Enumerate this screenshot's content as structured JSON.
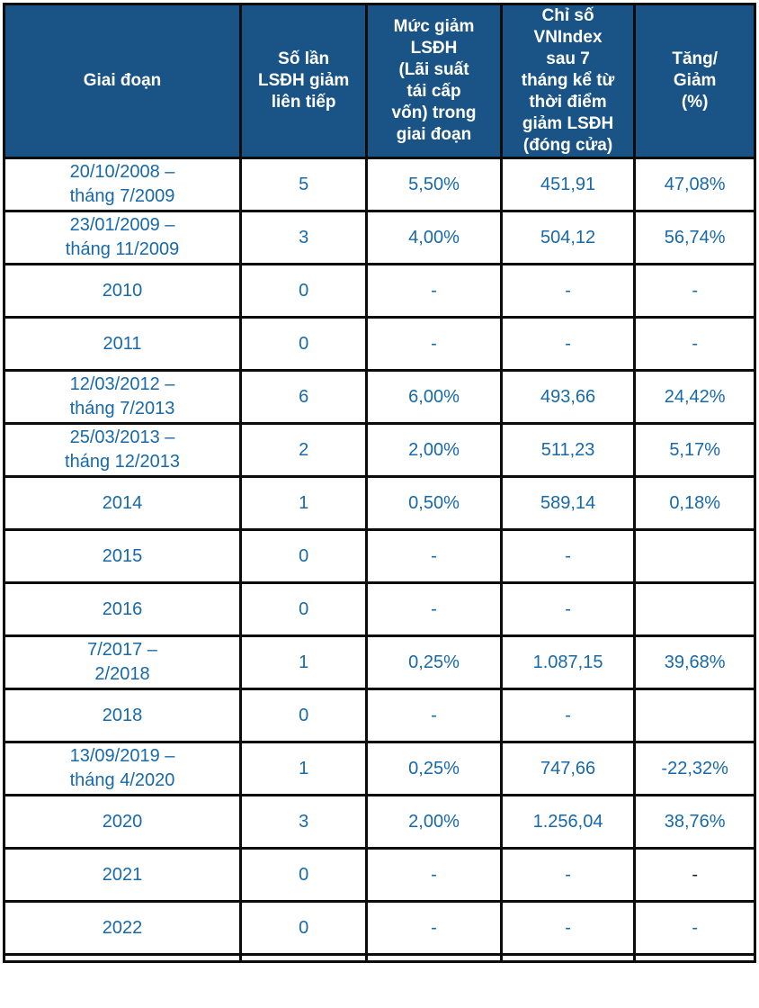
{
  "colors": {
    "header_bg": "#1a5486",
    "header_text": "#ffffff",
    "body_text": "#1769a9",
    "dark_text": "#1c1c1c",
    "border": "#0c0c0c"
  },
  "chart_data": {
    "type": "table",
    "columns": [
      "Giai đoạn",
      "Số lần\nLSĐH giảm\nliên tiếp",
      "Mức giảm\nLSĐH\n(Lãi suất\ntái cấp\nvốn) trong\ngiai đoạn",
      "Chỉ số\nVNIndex\nsau 7\ntháng kể từ\nthời điểm\ngiảm LSĐH\n(đóng cửa)",
      "Tăng/\nGiảm\n(%)"
    ],
    "rows": [
      {
        "period": "20/10/2008 –\ntháng 7/2009",
        "times": "5",
        "cut": "5,50%",
        "vnindex": "451,91",
        "change": "47,08%"
      },
      {
        "period": "23/01/2009 –\ntháng 11/2009",
        "times": "3",
        "cut": "4,00%",
        "vnindex": "504,12",
        "change": "56,74%"
      },
      {
        "period": "2010",
        "times": "0",
        "cut": "-",
        "vnindex": "-",
        "change": "-"
      },
      {
        "period": "2011",
        "times": "0",
        "cut": "-",
        "vnindex": "-",
        "change": "-"
      },
      {
        "period": "12/03/2012 –\ntháng 7/2013",
        "times": "6",
        "cut": "6,00%",
        "vnindex": "493,66",
        "change": "24,42%"
      },
      {
        "period": "25/03/2013 –\ntháng 12/2013",
        "times": "2",
        "cut": "2,00%",
        "vnindex": "511,23",
        "change": "5,17%"
      },
      {
        "period": "2014",
        "times": "1",
        "cut": "0,50%",
        "vnindex": "589,14",
        "change": "0,18%"
      },
      {
        "period": "2015",
        "times": "0",
        "cut": "-",
        "vnindex": "-",
        "change": ""
      },
      {
        "period": "2016",
        "times": "0",
        "cut": "-",
        "vnindex": "-",
        "change": ""
      },
      {
        "period": "7/2017 –\n2/2018",
        "times": "1",
        "cut": "0,25%",
        "vnindex": "1.087,15",
        "change": "39,68%"
      },
      {
        "period": "2018",
        "times": "0",
        "cut": "-",
        "vnindex": "-",
        "change": ""
      },
      {
        "period": "13/09/2019 –\ntháng 4/2020",
        "times": "1",
        "cut": "0,25%",
        "vnindex": "747,66",
        "change": "-22,32%"
      },
      {
        "period": "2020",
        "times": "3",
        "cut": "2,00%",
        "vnindex": "1.256,04",
        "change": "38,76%"
      },
      {
        "period": "2021",
        "times": "0",
        "cut": "-",
        "vnindex": "-",
        "change": "-",
        "change_dark": true
      },
      {
        "period": "2022",
        "times": "0",
        "cut": "-",
        "vnindex": "-",
        "change": "-"
      }
    ]
  }
}
